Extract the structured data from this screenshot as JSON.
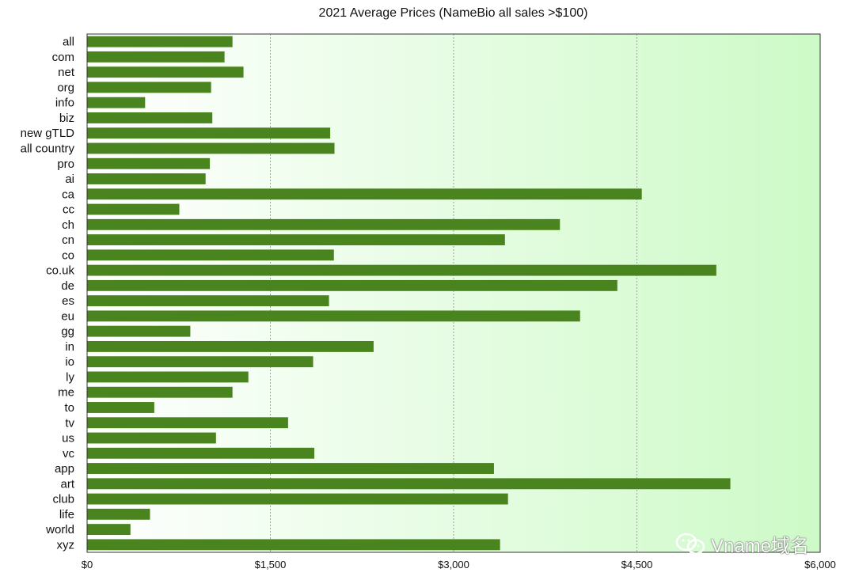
{
  "watermark": {
    "text": "Vname域名"
  },
  "chart_data": {
    "type": "bar",
    "orientation": "horizontal",
    "title": "2021 Average Prices (NameBio all sales >$100)",
    "xlabel": "",
    "ylabel": "",
    "xlim": [
      0,
      6000
    ],
    "x_ticks": [
      0,
      1500,
      3000,
      4500,
      6000
    ],
    "x_tick_labels": [
      "$0",
      "$1,500",
      "$3,000",
      "$4,500",
      "$6,000"
    ],
    "grid": "vertical dashed",
    "bar_color": "#4a841e",
    "background_gradient": [
      "#ffffff",
      "#cdfac7"
    ],
    "categories": [
      "all",
      "com",
      "net",
      "org",
      "info",
      "biz",
      "new gTLD",
      "all country",
      "pro",
      "ai",
      "ca",
      "cc",
      "ch",
      "cn",
      "co",
      "co.uk",
      "de",
      "es",
      "eu",
      "gg",
      "in",
      "io",
      "ly",
      "me",
      "to",
      "tv",
      "us",
      "vc",
      "app",
      "art",
      "club",
      "life",
      "world",
      "xyz"
    ],
    "values": [
      1190,
      1125,
      1280,
      1015,
      475,
      1025,
      1990,
      2025,
      1005,
      970,
      4540,
      755,
      3870,
      3420,
      2020,
      5150,
      4340,
      1980,
      4035,
      845,
      2345,
      1850,
      1320,
      1190,
      550,
      1645,
      1055,
      1860,
      3330,
      5265,
      3445,
      515,
      355,
      3380
    ]
  }
}
